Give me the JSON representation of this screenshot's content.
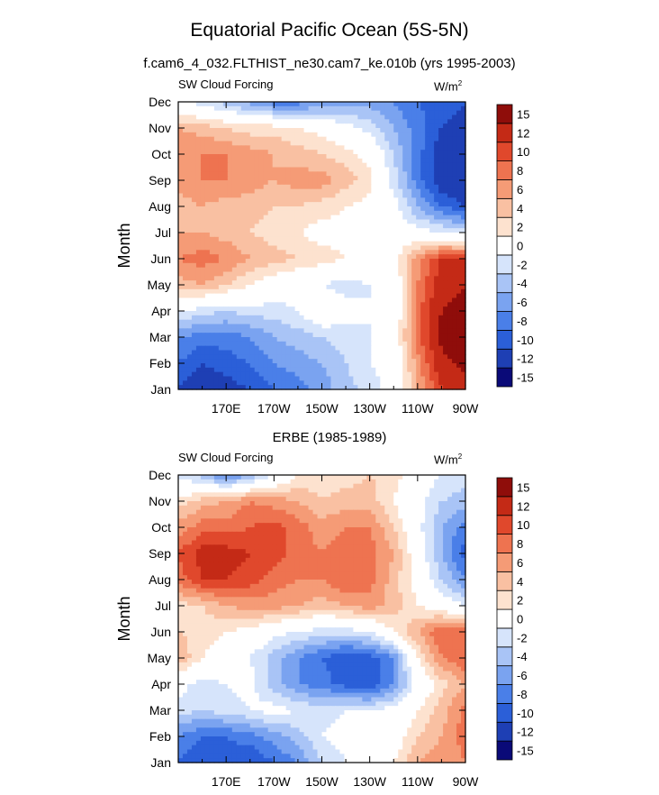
{
  "title": "Equatorial Pacific Ocean (5S-5N)",
  "subtitle": "f.cam6_4_032.FLTHIST_ne30.cam7_ke.010b (yrs 1995-2003)",
  "colors": [
    "#0a0a78",
    "#1e3fb4",
    "#2b5fd8",
    "#4a7fe8",
    "#7aa3f0",
    "#a9c4f6",
    "#d6e4fb",
    "#ffffff",
    "#fde2cf",
    "#f9c0a2",
    "#f59b76",
    "#ee7350",
    "#e0482c",
    "#c42a16",
    "#8f0d0a"
  ],
  "contour_levels": [
    "-15",
    "-12",
    "-10",
    "-8",
    "-6",
    "-4",
    "-2",
    "0",
    "2",
    "4",
    "6",
    "8",
    "10",
    "12",
    "15"
  ],
  "chart_data": [
    {
      "type": "heatmap",
      "title": "",
      "left_label": "SW Cloud Forcing",
      "units": "W/m",
      "units_sup": "2",
      "xlabel": "",
      "ylabel": "Month",
      "xticks": [
        "170E",
        "170W",
        "150W",
        "130W",
        "110W",
        "90W"
      ],
      "yticks": [
        "Jan",
        "Feb",
        "Mar",
        "Apr",
        "May",
        "Jun",
        "Jul",
        "Aug",
        "Sep",
        "Oct",
        "Nov",
        "Dec"
      ],
      "x": [
        150,
        160,
        170,
        180,
        190,
        200,
        210,
        220,
        230,
        240,
        250,
        260,
        270
      ],
      "z": [
        [
          -12,
          -14,
          -13,
          -12,
          -10,
          -9,
          -7,
          -5,
          -3,
          -1,
          6,
          12,
          14
        ],
        [
          -10,
          -12,
          -11,
          -10,
          -8,
          -7,
          -6,
          -4,
          -2,
          -1,
          7,
          14,
          16
        ],
        [
          -8,
          -9,
          -9,
          -8,
          -6,
          -5,
          -4,
          -3,
          -2,
          0,
          9,
          16,
          17
        ],
        [
          -2,
          -3,
          -4,
          -3,
          -3,
          -2,
          1,
          -1,
          -2,
          -1,
          9,
          15,
          16
        ],
        [
          5,
          6,
          4,
          2,
          0,
          -1,
          -2,
          -3,
          -2,
          -1,
          8,
          14,
          15
        ],
        [
          8,
          9,
          8,
          6,
          5,
          4,
          3,
          2,
          1,
          1,
          7,
          12,
          12
        ],
        [
          6,
          6,
          5,
          4,
          3,
          2,
          1,
          1,
          1,
          0,
          -1,
          -2,
          -3
        ],
        [
          5,
          6,
          5,
          5,
          4,
          4,
          3,
          2,
          1,
          -1,
          -6,
          -10,
          -12
        ],
        [
          7,
          8,
          8,
          7,
          6,
          7,
          7,
          5,
          3,
          -3,
          -9,
          -14,
          -15
        ],
        [
          8,
          8,
          8,
          7,
          6,
          5,
          4,
          3,
          1,
          -4,
          -9,
          -14,
          -15
        ],
        [
          6,
          5,
          4,
          3,
          3,
          2,
          1,
          -1,
          -3,
          -6,
          -9,
          -12,
          -13
        ],
        [
          -2,
          -3,
          -5,
          -7,
          -9,
          -9,
          -8,
          -7,
          -7,
          -8,
          -10,
          -11,
          -12
        ]
      ]
    },
    {
      "type": "heatmap",
      "title": "ERBE (1985-1989)",
      "left_label": "SW Cloud Forcing",
      "units": "W/m",
      "units_sup": "2",
      "xlabel": "",
      "ylabel": "Month",
      "xticks": [
        "170E",
        "170W",
        "150W",
        "130W",
        "110W",
        "90W"
      ],
      "yticks": [
        "Jan",
        "Feb",
        "Mar",
        "Apr",
        "May",
        "Jun",
        "Jul",
        "Aug",
        "Sep",
        "Oct",
        "Nov",
        "Dec"
      ],
      "x": [
        150,
        160,
        170,
        180,
        190,
        200,
        210,
        220,
        230,
        240,
        250,
        260,
        270
      ],
      "z": [
        [
          -10,
          -12,
          -11,
          -12,
          -10,
          -8,
          -4,
          -2,
          1,
          2,
          6,
          7,
          8
        ],
        [
          -8,
          -10,
          -10,
          -9,
          -7,
          -5,
          -2,
          -1,
          -1,
          0,
          4,
          6,
          9
        ],
        [
          -3,
          -4,
          -3,
          -2,
          -1,
          -2,
          -3,
          -2,
          -2,
          -1,
          2,
          5,
          9
        ],
        [
          -1,
          -3,
          -2,
          -1,
          -5,
          -8,
          -9,
          -11,
          -12,
          -8,
          -1,
          3,
          6
        ],
        [
          6,
          2,
          0,
          -2,
          -5,
          -8,
          -10,
          -12,
          -11,
          -8,
          2,
          8,
          10
        ],
        [
          4,
          3,
          2,
          1,
          -1,
          -2,
          -3,
          -3,
          -2,
          2,
          6,
          10,
          9
        ],
        [
          3,
          4,
          6,
          7,
          7,
          6,
          5,
          6,
          7,
          5,
          2,
          0,
          -2
        ],
        [
          9,
          12,
          12,
          11,
          9,
          8,
          8,
          10,
          9,
          5,
          1,
          -4,
          -8
        ],
        [
          10,
          13,
          13,
          12,
          11,
          9,
          8,
          9,
          9,
          6,
          0,
          -6,
          -11
        ],
        [
          7,
          9,
          9,
          10,
          11,
          9,
          7,
          8,
          8,
          4,
          -1,
          -6,
          -9
        ],
        [
          3,
          5,
          6,
          8,
          7,
          6,
          4,
          5,
          5,
          2,
          -1,
          -4,
          -5
        ],
        [
          -3,
          -5,
          -9,
          -6,
          -2,
          2,
          3,
          3,
          4,
          3,
          0,
          -2,
          -3
        ]
      ]
    }
  ]
}
